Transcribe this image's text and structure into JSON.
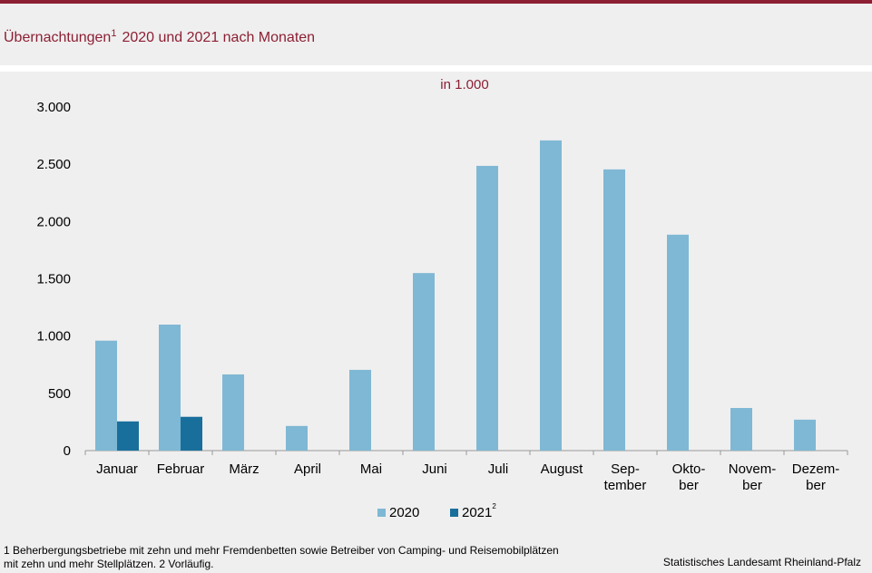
{
  "chart_data": {
    "type": "bar",
    "title": {
      "text": "Übernachtungen",
      "sup": "1",
      "rest": "2020 und 2021 nach Monaten"
    },
    "unit": "in 1.000",
    "categories": [
      [
        "Januar"
      ],
      [
        "Februar"
      ],
      [
        "März"
      ],
      [
        "April"
      ],
      [
        "Mai"
      ],
      [
        "Juni"
      ],
      [
        "Juli"
      ],
      [
        "August"
      ],
      [
        "Sep-",
        "tember"
      ],
      [
        "Okto-",
        "ber"
      ],
      [
        "Novem-",
        "ber"
      ],
      [
        "Dezem-",
        "ber"
      ]
    ],
    "series": [
      {
        "name": "2020",
        "color": "#7fb8d4",
        "values": [
          960,
          1100,
          665,
          215,
          705,
          1550,
          2486,
          2708,
          2455,
          1885,
          372,
          270
        ]
      },
      {
        "name": "2021",
        "note": "2",
        "color": "#196f9b",
        "values": [
          255,
          295,
          null,
          null,
          null,
          null,
          null,
          null,
          null,
          null,
          null,
          null
        ]
      }
    ],
    "ylim": [
      0,
      3000
    ],
    "yticks": [
      0,
      500,
      {
        "value": 1000,
        "label": "1.000"
      },
      {
        "value": 1500,
        "label": "1.500"
      },
      {
        "value": 2000,
        "label": "2.000"
      },
      {
        "value": 2500,
        "label": "2.500"
      },
      {
        "value": 3000,
        "label": "3.000"
      }
    ],
    "footnotes": [
      "1 Beherbergungsbetriebe  mit zehn und mehr Fremdenbetten  sowie Betreiber von Camping- und Reisemobilplätzen",
      " mit zehn und mehr Stellplätzen. 2 Vorläufig."
    ],
    "source": "Statistisches Landesamt Rheinland-Pfalz"
  }
}
